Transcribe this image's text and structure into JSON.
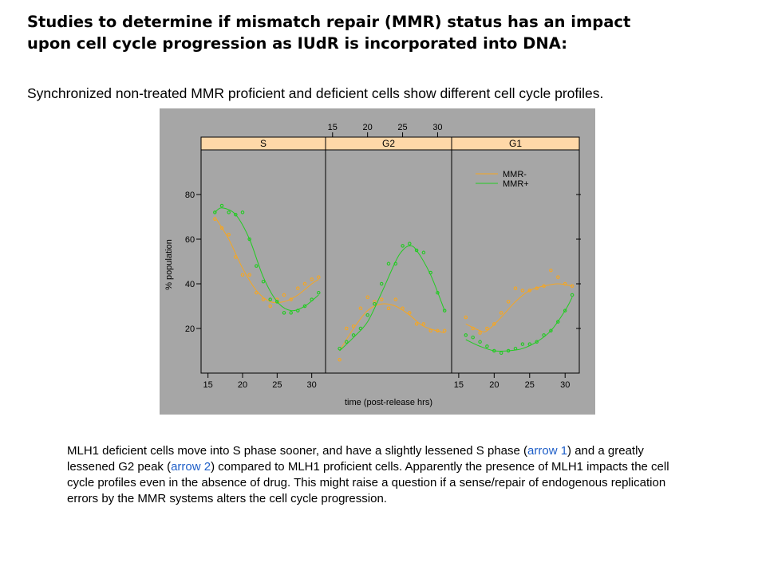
{
  "header": {
    "title_line1": "Studies to determine if mismatch repair (MMR) status has an impact",
    "title_line2": "upon cell cycle progression as IUdR is incorporated into DNA:",
    "subtitle": "Synchronized non-treated MMR proficient and deficient cells show different cell cycle profiles."
  },
  "caption": {
    "p1": "MLH1 deficient cells move into S phase sooner, and have a slightly lessened S phase (",
    "link1": "arrow 1",
    "p2": ") and a greatly lessened G2 peak (",
    "link2": "arrow 2",
    "p3": ") compared to MLH1 proficient cells. Apparently the presence of MLH1 impacts the cell cycle profiles even in the absence of drug. This might raise a question if a sense/repair of endogenous replication errors by the MMR systems alters the cell cycle progression."
  },
  "colors": {
    "mmr_minus": "#f5a623",
    "mmr_plus": "#22cc22",
    "panel_bg": "#a6a6a6",
    "strip_bg": "#ffd8a8",
    "link": "#1f5fc8"
  },
  "chart_data": {
    "type": "scatter",
    "xlabel": "time (post-release hrs)",
    "ylabel": "% population",
    "xlim": [
      14,
      32
    ],
    "ylim": [
      0,
      100
    ],
    "x_ticks": [
      15,
      20,
      25,
      30
    ],
    "y_ticks": [
      20,
      40,
      60,
      80
    ],
    "legend_position": "top-right",
    "series_names": [
      "MMR-",
      "MMR+"
    ],
    "panels": [
      {
        "label": "S",
        "series": [
          {
            "name": "MMR-",
            "x": [
              16,
              17,
              18,
              19,
              20,
              21,
              22,
              23,
              24,
              25,
              26,
              27,
              28,
              29,
              30,
              31
            ],
            "y": [
              69,
              65,
              62,
              52,
              44,
              44,
              36,
              33,
              30,
              33,
              35,
              33,
              38,
              40,
              42,
              43
            ],
            "fit": [
              [
                16,
                70
              ],
              [
                18,
                60
              ],
              [
                20,
                47
              ],
              [
                22,
                37
              ],
              [
                24,
                32
              ],
              [
                26,
                32
              ],
              [
                28,
                35
              ],
              [
                30,
                40
              ],
              [
                31,
                42
              ]
            ]
          },
          {
            "name": "MMR+",
            "x": [
              16,
              17,
              18,
              19,
              20,
              21,
              22,
              23,
              24,
              25,
              26,
              27,
              28,
              29,
              30,
              31
            ],
            "y": [
              72,
              75,
              72,
              71,
              72,
              60,
              48,
              41,
              33,
              32,
              27,
              27,
              28,
              30,
              33,
              36
            ],
            "fit": [
              [
                16,
                72
              ],
              [
                17,
                74
              ],
              [
                19,
                71
              ],
              [
                21,
                60
              ],
              [
                23,
                43
              ],
              [
                25,
                32
              ],
              [
                27,
                28
              ],
              [
                29,
                30
              ],
              [
                31,
                35
              ]
            ]
          }
        ]
      },
      {
        "label": "G2",
        "series": [
          {
            "name": "MMR-",
            "x": [
              16,
              17,
              18,
              19,
              20,
              21,
              22,
              23,
              24,
              25,
              26,
              27,
              28,
              29,
              30,
              31
            ],
            "y": [
              6,
              20,
              21,
              29,
              34,
              32,
              33,
              29,
              33,
              29,
              27,
              22,
              22,
              19,
              19,
              19
            ],
            "fit": [
              [
                16,
                10
              ],
              [
                18,
                20
              ],
              [
                20,
                28
              ],
              [
                22,
                31
              ],
              [
                24,
                30
              ],
              [
                26,
                26
              ],
              [
                28,
                21
              ],
              [
                31,
                18
              ]
            ]
          },
          {
            "name": "MMR+",
            "x": [
              16,
              17,
              18,
              19,
              20,
              21,
              22,
              23,
              24,
              25,
              26,
              27,
              28,
              29,
              30,
              31
            ],
            "y": [
              11,
              14,
              17,
              20,
              26,
              31,
              40,
              49,
              49,
              57,
              58,
              55,
              54,
              45,
              36,
              28
            ],
            "fit": [
              [
                16,
                10
              ],
              [
                18,
                16
              ],
              [
                20,
                23
              ],
              [
                22,
                36
              ],
              [
                24,
                50
              ],
              [
                25,
                55
              ],
              [
                26,
                57
              ],
              [
                27,
                55
              ],
              [
                29,
                44
              ],
              [
                31,
                28
              ]
            ]
          }
        ]
      },
      {
        "label": "G1",
        "series": [
          {
            "name": "MMR-",
            "x": [
              16,
              17,
              18,
              19,
              20,
              21,
              22,
              23,
              24,
              25,
              26,
              27,
              28,
              29,
              30,
              31
            ],
            "y": [
              25,
              20,
              18,
              20,
              22,
              27,
              32,
              38,
              37,
              37,
              38,
              39,
              46,
              43,
              40,
              39
            ],
            "fit": [
              [
                16,
                22
              ],
              [
                18,
                19
              ],
              [
                19,
                19
              ],
              [
                21,
                25
              ],
              [
                23,
                32
              ],
              [
                25,
                37
              ],
              [
                27,
                39
              ],
              [
                29,
                40
              ],
              [
                31,
                39
              ]
            ]
          },
          {
            "name": "MMR+",
            "x": [
              16,
              17,
              18,
              19,
              20,
              21,
              22,
              23,
              24,
              25,
              26,
              27,
              28,
              29,
              30,
              31
            ],
            "y": [
              17,
              16,
              14,
              12,
              10,
              9,
              10,
              11,
              13,
              13,
              14,
              17,
              19,
              23,
              28,
              35
            ],
            "fit": [
              [
                16,
                15
              ],
              [
                18,
                12
              ],
              [
                20,
                10
              ],
              [
                22,
                10
              ],
              [
                24,
                11
              ],
              [
                26,
                14
              ],
              [
                28,
                19
              ],
              [
                30,
                28
              ],
              [
                31,
                34
              ]
            ]
          }
        ]
      }
    ]
  }
}
